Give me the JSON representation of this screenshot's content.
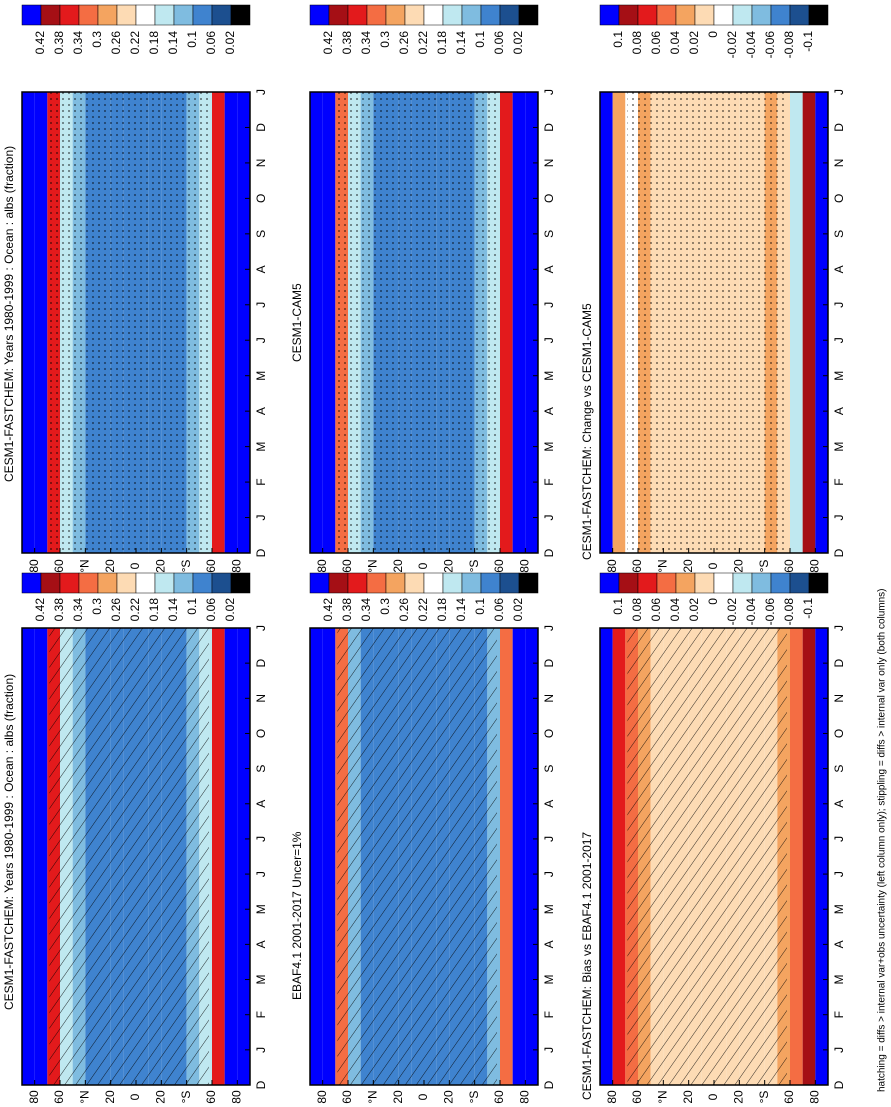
{
  "chart_data": [
    {
      "type": "heatmap",
      "title": "CESM1-FASTCHEM: Years 1980-1999 : Ocean : albs (fraction)",
      "categories": [
        "D",
        "J",
        "F",
        "M",
        "A",
        "M",
        "J",
        "J",
        "A",
        "S",
        "O",
        "N",
        "D",
        "J"
      ],
      "x": [
        -85,
        -75,
        -65,
        -55,
        -45,
        -35,
        -25,
        -15,
        -5,
        5,
        15,
        25,
        35,
        45,
        55,
        65,
        75,
        85
      ],
      "values": [
        0.5,
        0.48,
        0.37,
        0.15,
        0.12,
        0.09,
        0.08,
        0.07,
        0.07,
        0.07,
        0.07,
        0.08,
        0.09,
        0.12,
        0.17,
        0.35,
        0.5,
        0.5
      ],
      "xlim": [
        90,
        -90
      ],
      "xticks": [
        {
          "value": 80,
          "label": "80"
        },
        {
          "value": 60,
          "label": "60"
        },
        {
          "value": 40,
          "label": "°N"
        },
        {
          "value": 20,
          "label": "20"
        },
        0,
        {
          "value": -20,
          "label": "20"
        },
        {
          "value": -40,
          "label": "°S"
        },
        {
          "value": -60,
          "label": "60"
        },
        {
          "value": -80,
          "label": "80"
        }
      ],
      "levels": [
        0.42,
        0.38,
        0.34,
        0.3,
        0.26,
        0.22,
        0.18,
        0.14,
        0.1,
        0.06,
        0.02
      ],
      "colors": [
        "#0000ff",
        "#a50f15",
        "#e31a1c",
        "#f46d43",
        "#f4a460",
        "#fddbb4",
        "#ffffff",
        "#bfe8f0",
        "#7fbce0",
        "#3f83cf",
        "#1c4f8f",
        "#000000"
      ]
    },
    {
      "type": "heatmap",
      "title": "CESM1-CAM5",
      "categories": [
        "D",
        "J",
        "F",
        "M",
        "A",
        "M",
        "J",
        "J",
        "A",
        "S",
        "O",
        "N",
        "D",
        "J"
      ],
      "x": [
        -85,
        -75,
        -65,
        -55,
        -45,
        -35,
        -25,
        -15,
        -5,
        5,
        15,
        25,
        35,
        45,
        55,
        65,
        75,
        85
      ],
      "values": [
        0.5,
        0.48,
        0.36,
        0.15,
        0.12,
        0.09,
        0.08,
        0.07,
        0.07,
        0.07,
        0.07,
        0.08,
        0.09,
        0.12,
        0.17,
        0.34,
        0.5,
        0.5
      ],
      "xlim": [
        90,
        -90
      ],
      "xticks": [
        {
          "value": 80,
          "label": "80"
        },
        {
          "value": 60,
          "label": "60"
        },
        {
          "value": 40,
          "label": "°N"
        },
        {
          "value": 20,
          "label": "20"
        },
        0,
        {
          "value": -20,
          "label": "20"
        },
        {
          "value": -40,
          "label": "°S"
        },
        {
          "value": -60,
          "label": "60"
        },
        {
          "value": -80,
          "label": "80"
        }
      ],
      "levels": [
        0.42,
        0.38,
        0.34,
        0.3,
        0.26,
        0.22,
        0.18,
        0.14,
        0.1,
        0.06,
        0.02
      ],
      "colors": [
        "#0000ff",
        "#a50f15",
        "#e31a1c",
        "#f46d43",
        "#f4a460",
        "#fddbb4",
        "#ffffff",
        "#bfe8f0",
        "#7fbce0",
        "#3f83cf",
        "#1c4f8f",
        "#000000"
      ]
    },
    {
      "type": "heatmap",
      "title": "CESM1-FASTCHEM: Change vs CESM1-CAM5",
      "categories": [
        "D",
        "J",
        "F",
        "M",
        "A",
        "M",
        "J",
        "J",
        "A",
        "S",
        "O",
        "N",
        "D",
        "J"
      ],
      "x": [
        -85,
        -75,
        -65,
        -55,
        -45,
        -35,
        -25,
        -15,
        -5,
        5,
        15,
        25,
        35,
        45,
        55,
        65,
        75,
        85
      ],
      "values": [
        0.12,
        0.09,
        -0.03,
        0.01,
        0.03,
        0.005,
        0.005,
        0.005,
        0.005,
        0.005,
        0.005,
        0.005,
        0.01,
        0.01,
        0.03,
        -0.01,
        0.03,
        0.12
      ],
      "xlim": [
        90,
        -90
      ],
      "xticks": [
        {
          "value": 80,
          "label": "80"
        },
        {
          "value": 60,
          "label": "60"
        },
        {
          "value": 40,
          "label": "°N"
        },
        {
          "value": 20,
          "label": "20"
        },
        0,
        {
          "value": -20,
          "label": "20"
        },
        {
          "value": -40,
          "label": "°S"
        },
        {
          "value": -60,
          "label": "60"
        },
        {
          "value": -80,
          "label": "80"
        }
      ],
      "levels": [
        0.1,
        0.08,
        0.06,
        0.04,
        0.02,
        0,
        -0.02,
        -0.04,
        -0.06,
        -0.08,
        -0.1
      ],
      "colors": [
        "#0000ff",
        "#a50f15",
        "#e31a1c",
        "#f46d43",
        "#f4a460",
        "#fddbb4",
        "#ffffff",
        "#bfe8f0",
        "#7fbce0",
        "#3f83cf",
        "#1c4f8f",
        "#000000"
      ]
    },
    {
      "type": "heatmap",
      "title": "CESM1-FASTCHEM: Years 1980-1999 : Ocean : albs (fraction)",
      "categories": [
        "D",
        "J",
        "F",
        "M",
        "A",
        "M",
        "J",
        "J",
        "A",
        "S",
        "O",
        "N",
        "D",
        "J"
      ],
      "x": [
        -85,
        -75,
        -65,
        -55,
        -45,
        -35,
        -25,
        -15,
        -5,
        5,
        15,
        25,
        35,
        45,
        55,
        65,
        75,
        85
      ],
      "values": [
        0.5,
        0.48,
        0.37,
        0.15,
        0.12,
        0.09,
        0.08,
        0.07,
        0.07,
        0.07,
        0.07,
        0.08,
        0.09,
        0.12,
        0.17,
        0.35,
        0.5,
        0.5
      ],
      "xlim": [
        90,
        -90
      ],
      "xticks": [
        {
          "value": 80,
          "label": "80"
        },
        {
          "value": 60,
          "label": "60"
        },
        {
          "value": 40,
          "label": "°N"
        },
        {
          "value": 20,
          "label": "20"
        },
        0,
        {
          "value": -20,
          "label": "20"
        },
        {
          "value": -40,
          "label": "°S"
        },
        {
          "value": -60,
          "label": "60"
        },
        {
          "value": -80,
          "label": "80"
        }
      ],
      "levels": [
        0.42,
        0.38,
        0.34,
        0.3,
        0.26,
        0.22,
        0.18,
        0.14,
        0.1,
        0.06,
        0.02
      ],
      "colors": [
        "#0000ff",
        "#a50f15",
        "#e31a1c",
        "#f46d43",
        "#f4a460",
        "#fddbb4",
        "#ffffff",
        "#bfe8f0",
        "#7fbce0",
        "#3f83cf",
        "#1c4f8f",
        "#000000"
      ]
    },
    {
      "type": "heatmap",
      "title": "EBAF4.1 2001-2017 Uncer=1%",
      "categories": [
        "D",
        "J",
        "F",
        "M",
        "A",
        "M",
        "J",
        "J",
        "A",
        "S",
        "O",
        "N",
        "D",
        "J"
      ],
      "x": [
        -85,
        -75,
        -65,
        -55,
        -45,
        -35,
        -25,
        -15,
        -5,
        5,
        15,
        25,
        35,
        45,
        55,
        65,
        75,
        85
      ],
      "values": [
        0.5,
        0.46,
        0.33,
        0.12,
        0.1,
        0.08,
        0.07,
        0.065,
        0.065,
        0.065,
        0.065,
        0.07,
        0.08,
        0.1,
        0.14,
        0.32,
        0.5,
        0.5
      ],
      "xlim": [
        90,
        -90
      ],
      "xticks": [
        {
          "value": 80,
          "label": "80"
        },
        {
          "value": 60,
          "label": "60"
        },
        {
          "value": 40,
          "label": "°N"
        },
        {
          "value": 20,
          "label": "20"
        },
        0,
        {
          "value": -20,
          "label": "20"
        },
        {
          "value": -40,
          "label": "°S"
        },
        {
          "value": -60,
          "label": "60"
        },
        {
          "value": -80,
          "label": "80"
        }
      ],
      "levels": [
        0.42,
        0.38,
        0.34,
        0.3,
        0.26,
        0.22,
        0.18,
        0.14,
        0.1,
        0.06,
        0.02
      ],
      "colors": [
        "#0000ff",
        "#a50f15",
        "#e31a1c",
        "#f46d43",
        "#f4a460",
        "#fddbb4",
        "#ffffff",
        "#bfe8f0",
        "#7fbce0",
        "#3f83cf",
        "#1c4f8f",
        "#000000"
      ]
    },
    {
      "type": "heatmap",
      "title": "CESM1-FASTCHEM: Bias vs EBAF4.1 2001-2017",
      "categories": [
        "D",
        "J",
        "F",
        "M",
        "A",
        "M",
        "J",
        "J",
        "A",
        "S",
        "O",
        "N",
        "D",
        "J"
      ],
      "x": [
        -85,
        -75,
        -65,
        -55,
        -45,
        -35,
        -25,
        -15,
        -5,
        5,
        15,
        25,
        35,
        45,
        55,
        65,
        75,
        85
      ],
      "values": [
        0.12,
        0.1,
        0.05,
        0.03,
        0.02,
        0.015,
        0.01,
        0.005,
        0.005,
        0.005,
        0.005,
        0.01,
        0.015,
        0.02,
        0.03,
        0.05,
        0.08,
        0.12
      ],
      "xlim": [
        90,
        -90
      ],
      "xticks": [
        {
          "value": 80,
          "label": "80"
        },
        {
          "value": 60,
          "label": "60"
        },
        {
          "value": 40,
          "label": "°N"
        },
        {
          "value": 20,
          "label": "20"
        },
        0,
        {
          "value": -20,
          "label": "20"
        },
        {
          "value": -40,
          "label": "°S"
        },
        {
          "value": -60,
          "label": "60"
        },
        {
          "value": -80,
          "label": "80"
        }
      ],
      "levels": [
        0.1,
        0.08,
        0.06,
        0.04,
        0.02,
        0,
        -0.02,
        -0.04,
        -0.06,
        -0.08,
        -0.1
      ],
      "colors": [
        "#0000ff",
        "#a50f15",
        "#e31a1c",
        "#f46d43",
        "#f4a460",
        "#fddbb4",
        "#ffffff",
        "#bfe8f0",
        "#7fbce0",
        "#3f83cf",
        "#1c4f8f",
        "#000000"
      ]
    }
  ],
  "footnote": "hatching = diffs > internal var+obs uncertainty (left column only); stippling = diffs > internal var only (both columns)"
}
